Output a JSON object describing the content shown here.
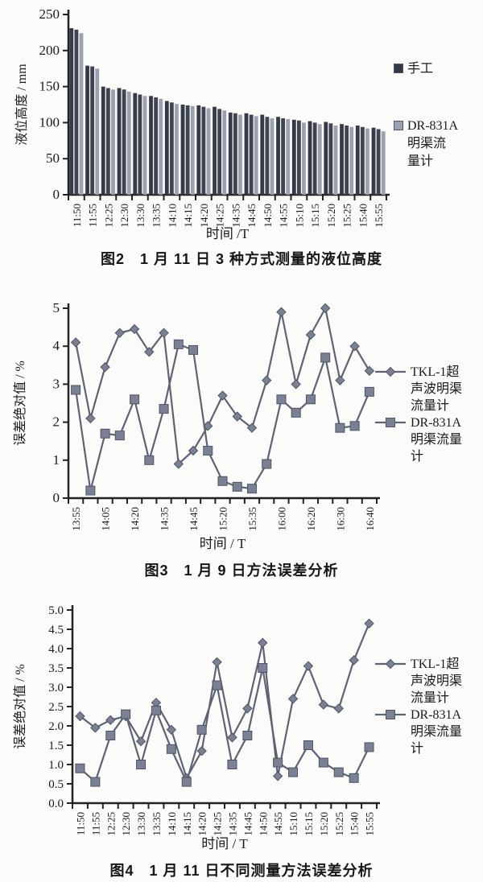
{
  "page": {
    "background": "#fbfbf9"
  },
  "colors": {
    "axis": "#222222",
    "line_series": "#5d6375",
    "marker_fill": "#7b8194",
    "marker_stroke": "#4e5464",
    "bar_dark_1": "#343a47",
    "bar_dark_2": "#3e4452",
    "bar_light": "#9ba1ae",
    "text": "#1a1a1a"
  },
  "chart_data": [
    {
      "id": "fig2-bar-chart",
      "type": "bar",
      "caption": "图2　1 月 11 日 3 种方式测量的液位高度",
      "ylabel": "液位高度 / mm",
      "xlabel": "时间 /T",
      "ylim": [
        0,
        250
      ],
      "yticks": [
        "0",
        "50",
        "100",
        "150",
        "200",
        "250"
      ],
      "grid": false,
      "legend_position": "right",
      "categories": [
        "11:50",
        "11:55",
        "12:25",
        "12:30",
        "13:30",
        "13:35",
        "14:10",
        "14:15",
        "14:20",
        "14:25",
        "14:35",
        "14:45",
        "14:50",
        "14:55",
        "15:10",
        "15:15",
        "15:20",
        "15:25",
        "15:40",
        "15:55"
      ],
      "series": [
        {
          "name": "手工",
          "color_key": "bar_dark_1",
          "values": [
            231,
            179,
            150,
            148,
            141,
            137,
            130,
            125,
            124,
            122,
            114,
            113,
            111,
            108,
            104,
            102,
            101,
            98,
            96,
            93
          ]
        },
        {
          "name": "",
          "color_key": "bar_dark_2",
          "values": [
            229,
            178,
            148,
            146,
            139,
            135,
            128,
            124,
            122,
            119,
            113,
            111,
            108,
            106,
            103,
            100,
            99,
            96,
            94,
            91
          ]
        },
        {
          "name": "DR-831A明渠流量计",
          "color_key": "bar_light",
          "values": [
            224,
            175,
            146,
            143,
            137,
            133,
            126,
            123,
            120,
            117,
            111,
            109,
            106,
            105,
            100,
            98,
            96,
            94,
            92,
            88
          ]
        }
      ],
      "legend": [
        {
          "label": "手工",
          "lines": [
            "手工"
          ],
          "marker": "square",
          "color_key": "bar_dark_1"
        },
        {
          "label": "DR-831A明渠流量计",
          "lines": [
            "DR-831A",
            "明渠流",
            "量计"
          ],
          "marker": "square",
          "color_key": "bar_light"
        }
      ]
    },
    {
      "id": "fig3-line-chart",
      "type": "line",
      "caption": "图3　1 月 9 日方法误差分析",
      "ylabel": "误差绝对值 / %",
      "xlabel": "时间 / T",
      "ylim": [
        0,
        5
      ],
      "yticks": [
        "0",
        "1",
        "2",
        "3",
        "4",
        "5"
      ],
      "grid": false,
      "legend_position": "right",
      "categories": [
        "13:55",
        "",
        "14:05",
        "",
        "14:20",
        "",
        "14:35",
        "",
        "14:45",
        "",
        "15:20",
        "",
        "15:35",
        "",
        "16:00",
        "",
        "16:20",
        "",
        "16:30",
        "",
        "16:40"
      ],
      "series": [
        {
          "name": "TKL-1超声波明渠流量计",
          "marker": "diamond",
          "values": [
            4.1,
            2.1,
            3.45,
            4.35,
            4.45,
            3.85,
            4.35,
            0.9,
            1.25,
            1.9,
            2.7,
            2.15,
            1.85,
            3.1,
            4.9,
            3.0,
            4.3,
            5.0,
            3.1,
            4.0,
            3.35
          ]
        },
        {
          "name": "DR-831A明渠流量计",
          "marker": "square",
          "values": [
            2.85,
            0.2,
            1.7,
            1.65,
            2.6,
            1.0,
            2.35,
            4.05,
            3.9,
            1.25,
            0.45,
            0.3,
            0.25,
            0.9,
            2.6,
            2.25,
            2.6,
            3.7,
            1.85,
            1.9,
            2.8
          ]
        }
      ],
      "legend": [
        {
          "label": "TKL-1超声波明渠流量计",
          "lines": [
            "TKL-1超",
            "声波明渠",
            "流量计"
          ],
          "marker": "diamond",
          "color_key": "marker_fill"
        },
        {
          "label": "DR-831A明渠流量计",
          "lines": [
            "DR-831A",
            "明渠流量",
            "计"
          ],
          "marker": "square",
          "color_key": "marker_fill"
        }
      ]
    },
    {
      "id": "fig4-line-chart",
      "type": "line",
      "caption": "图4　1 月 11 日不同测量方法误差分析",
      "ylabel": "误差绝对值 / %",
      "xlabel": "时间 / T",
      "ylim": [
        0,
        5
      ],
      "yticks": [
        "0.0",
        "0.5",
        "1.0",
        "1.5",
        "2.0",
        "2.5",
        "3.0",
        "3.5",
        "4.0",
        "4.5",
        "5.0"
      ],
      "grid": false,
      "legend_position": "right",
      "categories": [
        "11:50",
        "11:55",
        "12:25",
        "12:30",
        "13:30",
        "13:35",
        "14:10",
        "14:15",
        "14:20",
        "14:25",
        "14:35",
        "14:45",
        "14:50",
        "14:55",
        "15:10",
        "15:15",
        "15:20",
        "15:25",
        "15:40",
        "15:55"
      ],
      "series": [
        {
          "name": "TKL-1超声波明渠流量计",
          "marker": "diamond",
          "values": [
            2.25,
            1.95,
            2.15,
            2.25,
            1.6,
            2.6,
            1.9,
            0.65,
            1.35,
            3.65,
            1.7,
            2.45,
            4.15,
            0.7,
            2.7,
            3.55,
            2.55,
            2.45,
            3.7,
            4.65
          ]
        },
        {
          "name": "DR-831A明渠流量计",
          "marker": "square",
          "values": [
            0.9,
            0.55,
            1.75,
            2.3,
            1.0,
            2.4,
            1.4,
            0.55,
            1.9,
            3.05,
            1.0,
            1.75,
            3.5,
            1.05,
            0.8,
            1.5,
            1.05,
            0.8,
            0.65,
            1.45
          ]
        }
      ],
      "legend": [
        {
          "label": "TKL-1超声波明渠流量计",
          "lines": [
            "TKL-1超",
            "声波明渠",
            "流量计"
          ],
          "marker": "diamond",
          "color_key": "marker_fill"
        },
        {
          "label": "DR-831A明渠流量计",
          "lines": [
            "DR-831A",
            "明渠流量",
            "计"
          ],
          "marker": "square",
          "color_key": "marker_fill"
        }
      ]
    }
  ]
}
